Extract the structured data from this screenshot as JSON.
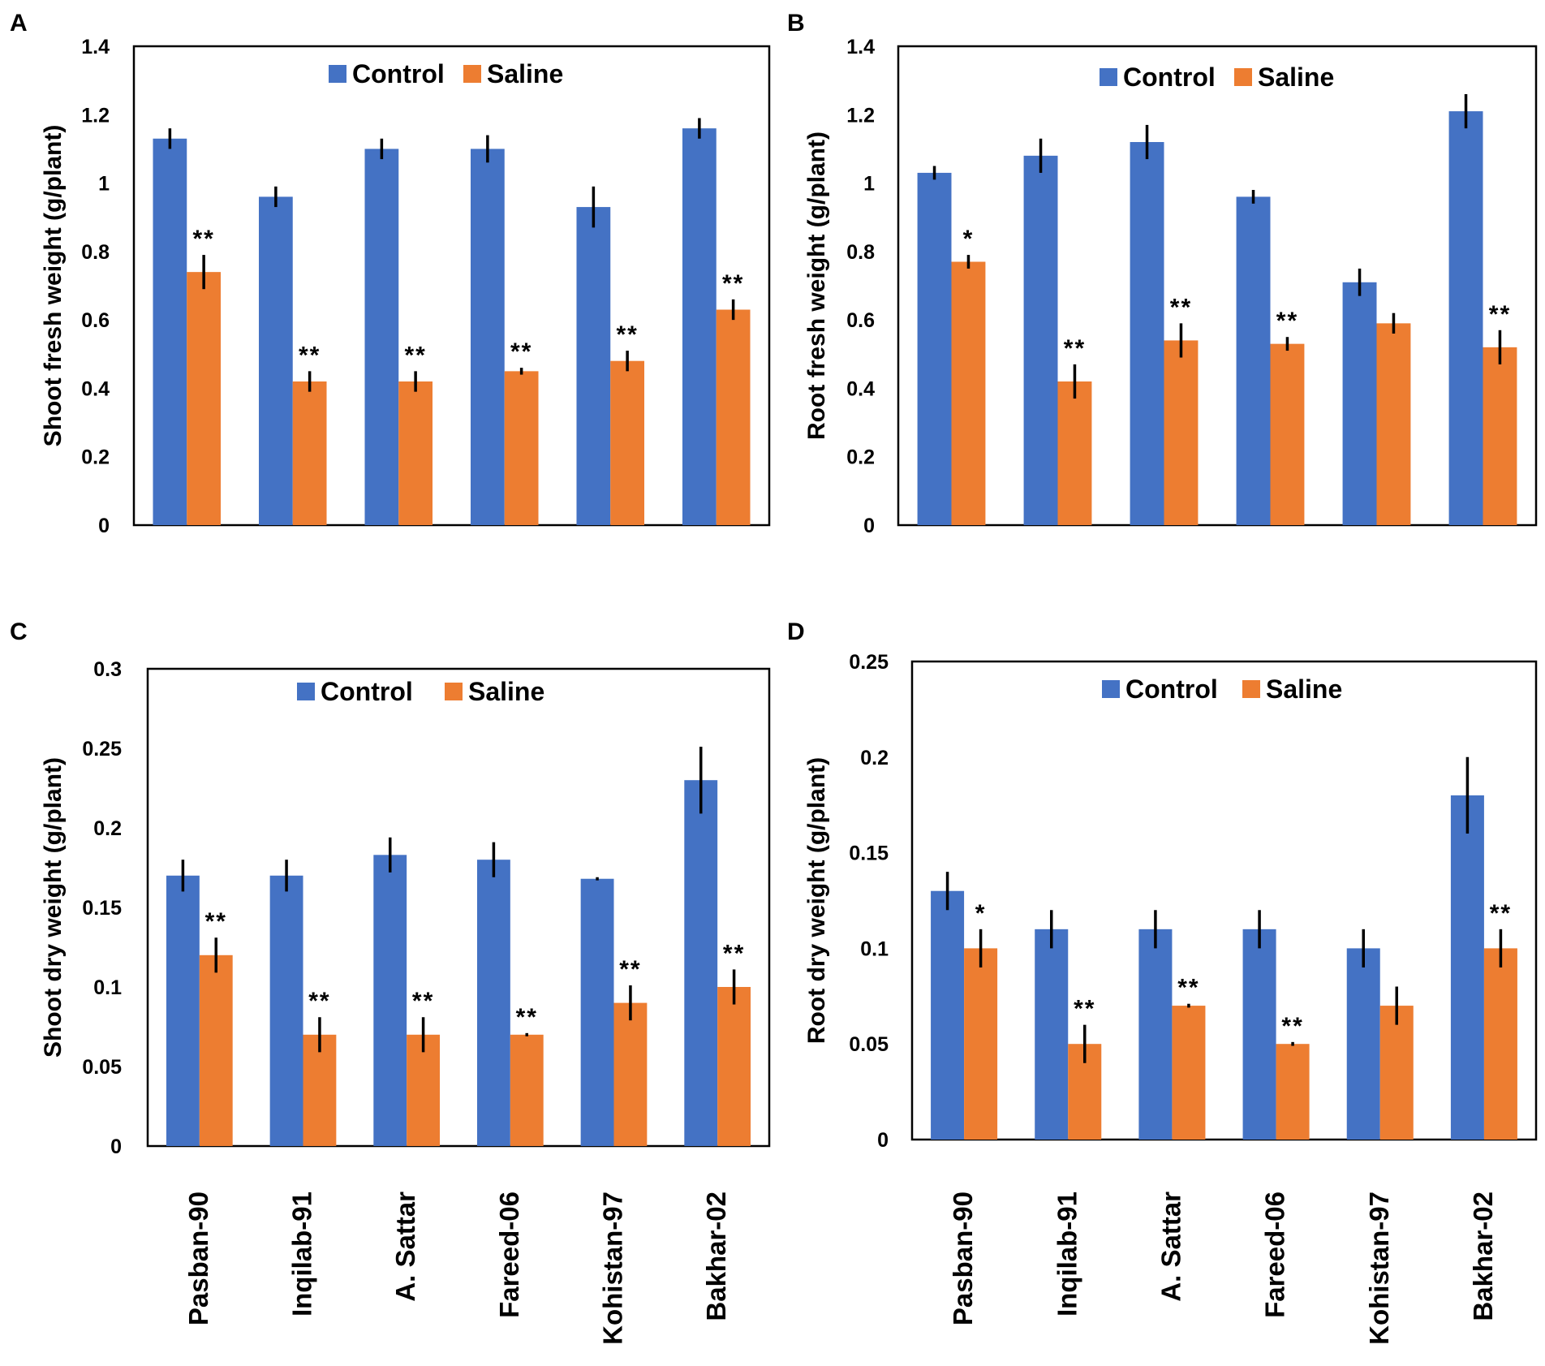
{
  "colors": {
    "control": "#4472C4",
    "saline": "#ED7D31",
    "axis": "#000000"
  },
  "legend": {
    "control": "Control",
    "saline": "Saline"
  },
  "chart_data": [
    {
      "type": "bar",
      "panel": "A",
      "ylabel": "Shoot fresh weight (g/plant)",
      "ylim": [
        0,
        1.4
      ],
      "ticks": [
        0,
        0.2,
        0.4,
        0.6,
        0.8,
        1,
        1.2,
        1.4
      ],
      "tick_labels": [
        "0",
        "0.2",
        "0.4",
        "0.6",
        "0.8",
        "1",
        "1.2",
        "1.4"
      ],
      "categories": [
        "Pasban-90",
        "Inqilab-91",
        "A. Sattar",
        "Fareed-06",
        "Kohistan-97",
        "Bakhar-02"
      ],
      "series": [
        {
          "name": "Control",
          "values": [
            1.13,
            0.96,
            1.1,
            1.1,
            0.93,
            1.16
          ],
          "errors": [
            0.03,
            0.03,
            0.03,
            0.04,
            0.06,
            0.03
          ]
        },
        {
          "name": "Saline",
          "values": [
            0.74,
            0.42,
            0.42,
            0.45,
            0.48,
            0.63
          ],
          "errors": [
            0.05,
            0.03,
            0.03,
            0.01,
            0.03,
            0.03
          ],
          "significance": [
            "**",
            "**",
            "**",
            "**",
            "**",
            "**"
          ]
        }
      ]
    },
    {
      "type": "bar",
      "panel": "B",
      "ylabel": "Root fresh weight (g/plant)",
      "ylim": [
        0,
        1.4
      ],
      "ticks": [
        0,
        0.2,
        0.4,
        0.6,
        0.8,
        1,
        1.2,
        1.4
      ],
      "tick_labels": [
        "0",
        "0.2",
        "0.4",
        "0.6",
        "0.8",
        "1",
        "1.2",
        "1.4"
      ],
      "categories": [
        "Pasban-90",
        "Inqilab-91",
        "A. Sattar",
        "Fareed-06",
        "Kohistan-97",
        "Bakhar-02"
      ],
      "series": [
        {
          "name": "Control",
          "values": [
            1.03,
            1.08,
            1.12,
            0.96,
            0.71,
            1.21
          ],
          "errors": [
            0.02,
            0.05,
            0.05,
            0.02,
            0.04,
            0.05
          ]
        },
        {
          "name": "Saline",
          "values": [
            0.77,
            0.42,
            0.54,
            0.53,
            0.59,
            0.52
          ],
          "errors": [
            0.02,
            0.05,
            0.05,
            0.02,
            0.03,
            0.05
          ],
          "significance": [
            "*",
            "**",
            "**",
            "**",
            "",
            "**"
          ]
        }
      ]
    },
    {
      "type": "bar",
      "panel": "C",
      "ylabel": "Shoot dry weight (g/plant)",
      "ylim": [
        0,
        0.3
      ],
      "ticks": [
        0,
        0.05,
        0.1,
        0.15,
        0.2,
        0.25,
        0.3
      ],
      "tick_labels": [
        "0",
        "0.05",
        "0.1",
        "0.15",
        "0.2",
        "0.25",
        "0.3"
      ],
      "categories": [
        "Pasban-90",
        "Inqilab-91",
        "A. Sattar",
        "Fareed-06",
        "Kohistan-97",
        "Bakhar-02"
      ],
      "series": [
        {
          "name": "Control",
          "values": [
            0.17,
            0.17,
            0.183,
            0.18,
            0.168,
            0.23
          ],
          "errors": [
            0.01,
            0.01,
            0.011,
            0.011,
            0.001,
            0.021
          ]
        },
        {
          "name": "Saline",
          "values": [
            0.12,
            0.07,
            0.07,
            0.07,
            0.09,
            0.1
          ],
          "errors": [
            0.011,
            0.011,
            0.011,
            0.001,
            0.011,
            0.011
          ],
          "significance": [
            "**",
            "**",
            "**",
            "**",
            "**",
            "**"
          ]
        }
      ]
    },
    {
      "type": "bar",
      "panel": "D",
      "ylabel": "Root dry weight (g/plant)",
      "ylim": [
        0,
        0.25
      ],
      "ticks": [
        0,
        0.05,
        0.1,
        0.15,
        0.2,
        0.25
      ],
      "tick_labels": [
        "0",
        "0.05",
        "0.1",
        "0.15",
        "0.2",
        "0.25"
      ],
      "categories": [
        "Pasban-90",
        "Inqilab-91",
        "A. Sattar",
        "Fareed-06",
        "Kohistan-97",
        "Bakhar-02"
      ],
      "series": [
        {
          "name": "Control",
          "values": [
            0.13,
            0.11,
            0.11,
            0.11,
            0.1,
            0.18
          ],
          "errors": [
            0.01,
            0.01,
            0.01,
            0.01,
            0.01,
            0.02
          ]
        },
        {
          "name": "Saline",
          "values": [
            0.1,
            0.05,
            0.07,
            0.05,
            0.07,
            0.1
          ],
          "errors": [
            0.01,
            0.01,
            0.001,
            0.001,
            0.01,
            0.01
          ],
          "significance": [
            "*",
            "**",
            "**",
            "**",
            "",
            "**"
          ]
        }
      ]
    }
  ]
}
